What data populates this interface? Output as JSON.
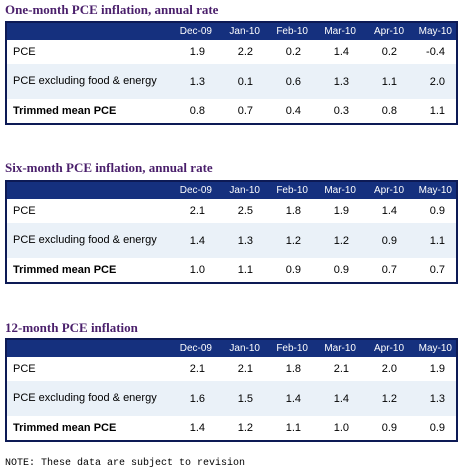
{
  "columns": [
    "Dec-09",
    "Jan-10",
    "Feb-10",
    "Mar-10",
    "Apr-10",
    "May-10"
  ],
  "tables": [
    {
      "title": "One-month PCE inflation, annual rate",
      "rows": [
        {
          "label": "PCE",
          "values": [
            "1.9",
            "2.2",
            "0.2",
            "1.4",
            "0.2",
            "-0.4"
          ]
        },
        {
          "label": "PCE excluding food & energy",
          "values": [
            "1.3",
            "0.1",
            "0.6",
            "1.3",
            "1.1",
            "2.0"
          ]
        },
        {
          "label": "Trimmed mean PCE",
          "values": [
            "0.8",
            "0.7",
            "0.4",
            "0.3",
            "0.8",
            "1.1"
          ]
        }
      ]
    },
    {
      "title": "Six-month PCE inflation, annual rate",
      "rows": [
        {
          "label": "PCE",
          "values": [
            "2.1",
            "2.5",
            "1.8",
            "1.9",
            "1.4",
            "0.9"
          ]
        },
        {
          "label": "PCE excluding food & energy",
          "values": [
            "1.4",
            "1.3",
            "1.2",
            "1.2",
            "0.9",
            "1.1"
          ]
        },
        {
          "label": "Trimmed mean PCE",
          "values": [
            "1.0",
            "1.1",
            "0.9",
            "0.9",
            "0.7",
            "0.7"
          ]
        }
      ]
    },
    {
      "title": "12-month PCE inflation",
      "rows": [
        {
          "label": "PCE",
          "values": [
            "2.1",
            "2.1",
            "1.8",
            "2.1",
            "2.0",
            "1.9"
          ]
        },
        {
          "label": "PCE excluding food & energy",
          "values": [
            "1.6",
            "1.5",
            "1.4",
            "1.4",
            "1.2",
            "1.3"
          ]
        },
        {
          "label": "Trimmed mean PCE",
          "values": [
            "1.4",
            "1.2",
            "1.1",
            "1.0",
            "0.9",
            "0.9"
          ]
        }
      ]
    }
  ],
  "note": "NOTE: These data are subject to revision",
  "colors": {
    "title": "#4a1f6b",
    "header_bg": "#15307e",
    "border": "#0d1a55",
    "alt_row": "#eaf1f8"
  }
}
